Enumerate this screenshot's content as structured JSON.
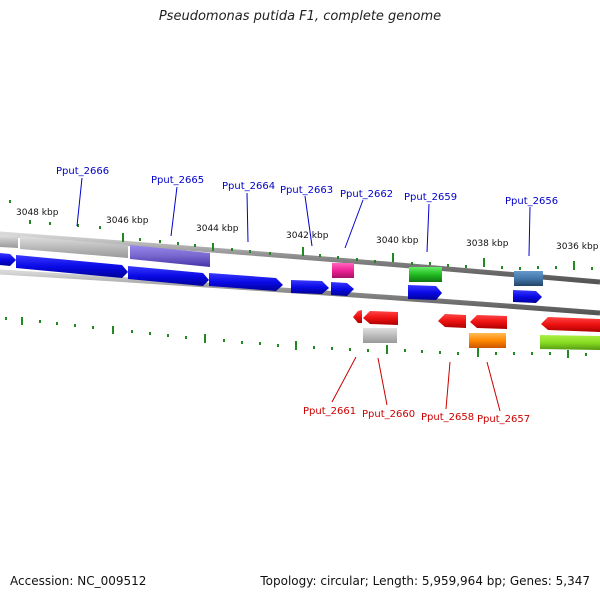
{
  "title": "Pseudomonas putida F1, complete genome",
  "accession": "Accession: NC_009512",
  "topology": "Topology: circular; Length: 5,959,964 bp; Genes: 5,347",
  "colors": {
    "blue": "#0a0ae6",
    "blue_label": "#0000cc",
    "red": "#ee1111",
    "red_label": "#cc0000",
    "magenta": "#ee2299",
    "green": "#22bb22",
    "purple": "#7766cc",
    "gray": "#bbbbbb",
    "steel": "#4477aa",
    "orange": "#ff8800",
    "lime": "#88dd22",
    "tick": "#228822"
  },
  "kbp_labels": [
    {
      "kbp": "3048 kbp"
    },
    {
      "kbp": "3046 kbp"
    },
    {
      "kbp": "3044 kbp"
    },
    {
      "kbp": "3042 kbp"
    },
    {
      "kbp": "3040 kbp"
    },
    {
      "kbp": "3038 kbp"
    },
    {
      "kbp": "3036 kbp"
    }
  ],
  "top_labels": [
    {
      "name": "Pput_2666"
    },
    {
      "name": "Pput_2665"
    },
    {
      "name": "Pput_2664"
    },
    {
      "name": "Pput_2663"
    },
    {
      "name": "Pput_2662"
    },
    {
      "name": "Pput_2659"
    },
    {
      "name": "Pput_2656"
    }
  ],
  "bottom_labels": [
    {
      "name": "Pput_2661"
    },
    {
      "name": "Pput_2660"
    },
    {
      "name": "Pput_2658"
    },
    {
      "name": "Pput_2657"
    }
  ]
}
